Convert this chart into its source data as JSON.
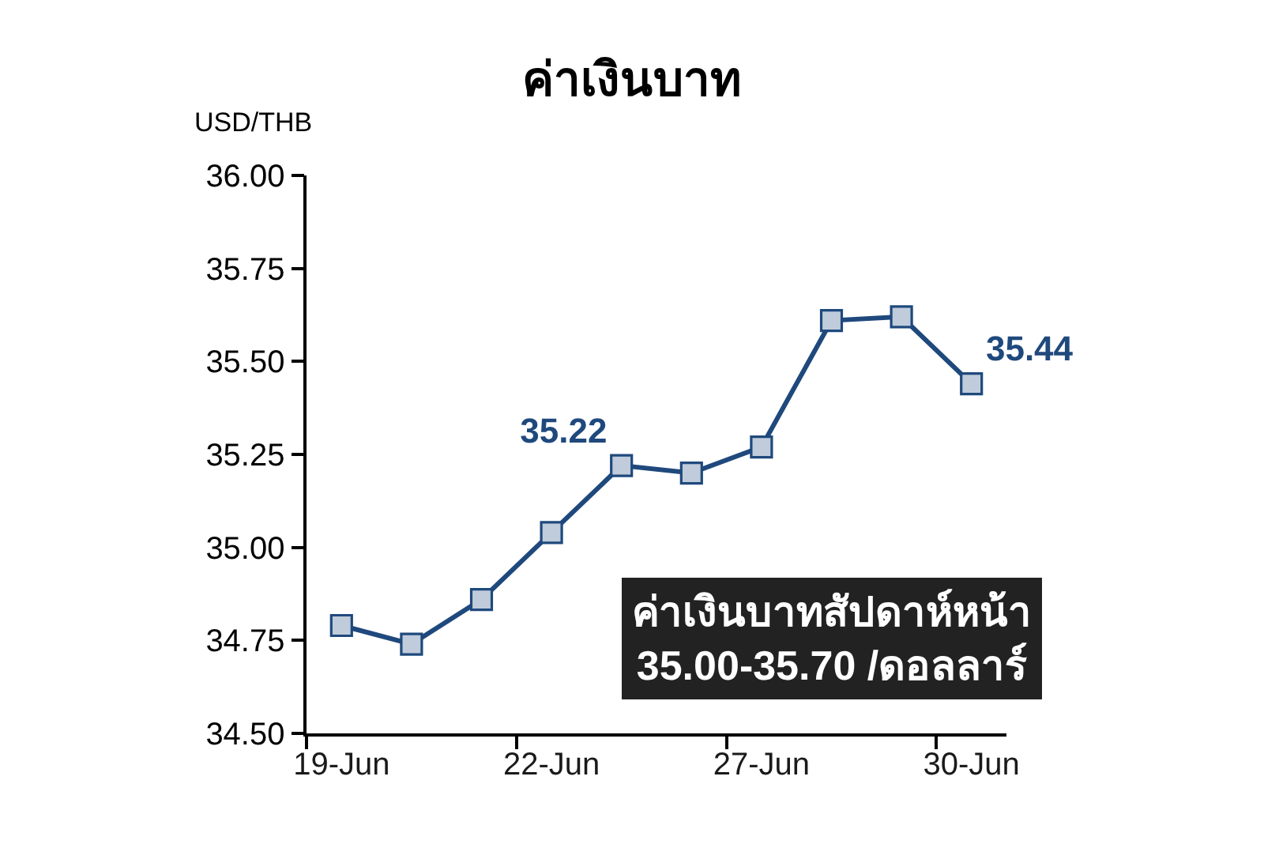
{
  "chart_data": {
    "type": "line",
    "title": "ค่าเงินบาท",
    "ylabel": "USD/THB",
    "categories": [
      "19-Jun",
      null,
      null,
      "22-Jun",
      null,
      null,
      "27-Jun",
      null,
      null,
      "30-Jun"
    ],
    "series": [
      {
        "color": "#1f497d",
        "values": [
          34.79,
          34.74,
          34.86,
          35.04,
          35.22,
          35.2,
          35.27,
          35.61,
          35.62,
          35.44
        ],
        "value_labels": [
          null,
          null,
          null,
          null,
          "35.22",
          null,
          null,
          null,
          null,
          "35.44"
        ]
      }
    ],
    "ylim": [
      34.5,
      36.0
    ],
    "yticks": [
      {
        "value": 34.5,
        "label": "34.50"
      },
      {
        "value": 34.75,
        "label": "34.75"
      },
      {
        "value": 35.0,
        "label": "35.00"
      },
      {
        "value": 35.25,
        "label": "35.25"
      },
      {
        "value": 35.5,
        "label": "35.50"
      },
      {
        "value": 35.75,
        "label": "35.75"
      },
      {
        "value": 36.0,
        "label": "36.00"
      }
    ],
    "marker": "square",
    "line_style": "solid",
    "annotations": [
      "ค่าเงินบาทสัปดาห์หน้า\n35.00-35.70 /ดอลลาร์"
    ]
  }
}
